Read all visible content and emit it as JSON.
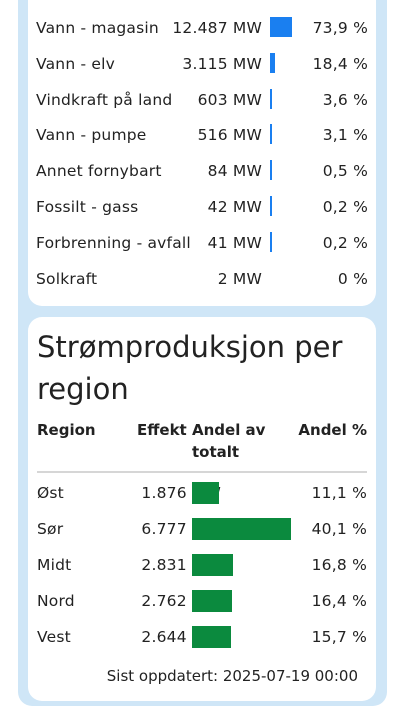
{
  "production_by_source": {
    "rows": [
      {
        "source": "Vann - magasin",
        "mw": "12.487 MW",
        "pct": "73,9 %",
        "share": 73.9
      },
      {
        "source": "Vann - elv",
        "mw": "3.115 MW",
        "pct": "18,4 %",
        "share": 18.4
      },
      {
        "source": "Vindkraft på land",
        "mw": "603 MW",
        "pct": "3,6 %",
        "share": 3.6
      },
      {
        "source": "Vann - pumpe",
        "mw": "516 MW",
        "pct": "3,1 %",
        "share": 3.1
      },
      {
        "source": "Annet fornybart",
        "mw": "84 MW",
        "pct": "0,5 %",
        "share": 0.5
      },
      {
        "source": "Fossilt - gass",
        "mw": "42 MW",
        "pct": "0,2 %",
        "share": 0.2
      },
      {
        "source": "Forbrenning - avfall",
        "mw": "41 MW",
        "pct": "0,2 %",
        "share": 0.2
      },
      {
        "source": "Solkraft",
        "mw": "2 MW",
        "pct": "0 %",
        "share": 0
      }
    ],
    "bar_color": "#1a7ff0"
  },
  "region_section": {
    "title": "Strømproduksjon per region",
    "headers": {
      "region": "Region",
      "effekt": "Effekt",
      "andel_line1": "Andel av",
      "andel_line2": "totalt",
      "pct": "Andel %"
    },
    "rows": [
      {
        "region": "Øst",
        "mw": "1.876 MW",
        "pct": "11,1 %",
        "share": 11.1
      },
      {
        "region": "Sør",
        "mw": "6.777 MW",
        "pct": "40,1 %",
        "share": 40.1
      },
      {
        "region": "Midt",
        "mw": "2.831 MW",
        "pct": "16,8 %",
        "share": 16.8
      },
      {
        "region": "Nord",
        "mw": "2.762 MW",
        "pct": "16,4 %",
        "share": 16.4
      },
      {
        "region": "Vest",
        "mw": "2.644 MW",
        "pct": "15,7 %",
        "share": 15.7
      }
    ],
    "bar_color": "#0b8a3e",
    "footer": "Sist oppdatert: 2025-07-19 00:00"
  }
}
